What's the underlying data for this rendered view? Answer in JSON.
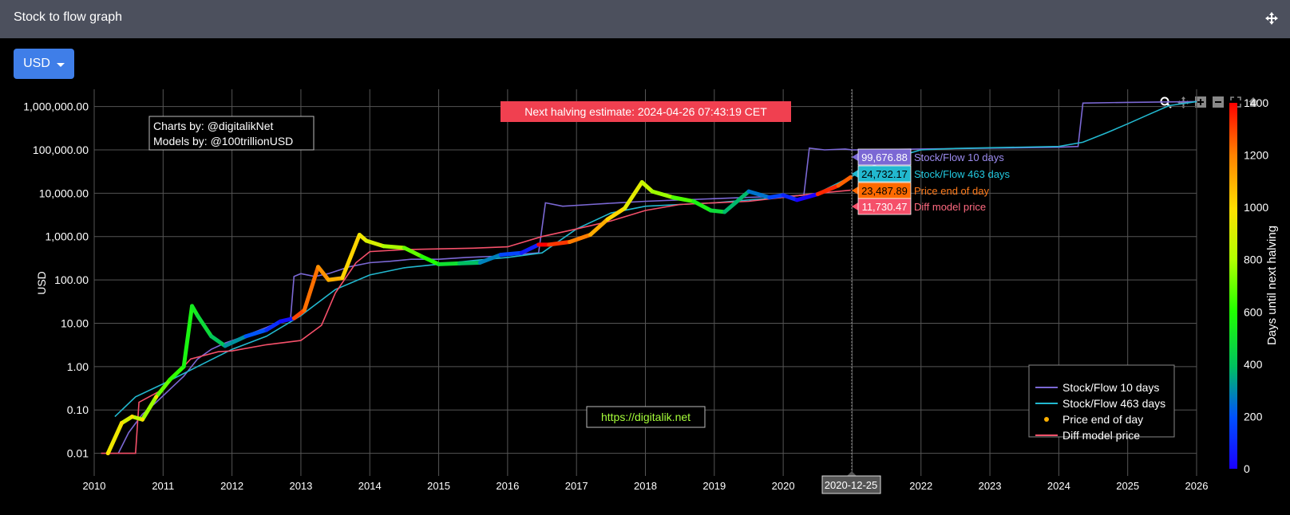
{
  "window": {
    "title": "Stock to flow graph"
  },
  "toolbar": {
    "currency": "USD"
  },
  "chart_data": {
    "type": "line",
    "halving_banner": "Next halving estimate: 2024-04-26 07:43:19 CET",
    "credits": [
      "Charts by: @digitalikNet",
      "Models by: @100trillionUSD"
    ],
    "watermark": "https://digitalik.net",
    "hover_date": "2020-12-25",
    "ylabel": "USD",
    "y_scale": "log",
    "ylim": [
      0.003,
      2500000
    ],
    "xlim": [
      2010.0,
      2026.0
    ],
    "y_ticks": [
      {
        "v": 1000000,
        "label": "1,000,000.00"
      },
      {
        "v": 100000,
        "label": "100,000.00"
      },
      {
        "v": 10000,
        "label": "10,000.00"
      },
      {
        "v": 1000,
        "label": "1,000.00"
      },
      {
        "v": 100,
        "label": "100.00"
      },
      {
        "v": 10,
        "label": "10.00"
      },
      {
        "v": 1,
        "label": "1.00"
      },
      {
        "v": 0.1,
        "label": "0.10"
      },
      {
        "v": 0.01,
        "label": "0.01"
      }
    ],
    "x_ticks": [
      {
        "v": 2010,
        "label": "2010"
      },
      {
        "v": 2011,
        "label": "2011"
      },
      {
        "v": 2012,
        "label": "2012"
      },
      {
        "v": 2013,
        "label": "2013"
      },
      {
        "v": 2014,
        "label": "2014"
      },
      {
        "v": 2015,
        "label": "2015"
      },
      {
        "v": 2016,
        "label": "2016"
      },
      {
        "v": 2017,
        "label": "2017"
      },
      {
        "v": 2018,
        "label": "2018"
      },
      {
        "v": 2019,
        "label": "2019"
      },
      {
        "v": 2020,
        "label": "2020"
      },
      {
        "v": 2022,
        "label": "2022"
      },
      {
        "v": 2023,
        "label": "2023"
      },
      {
        "v": 2024,
        "label": "2024"
      },
      {
        "v": 2025,
        "label": "2025"
      },
      {
        "v": 2026,
        "label": "2026"
      }
    ],
    "colorbar": {
      "title": "Days until next halving",
      "min": 0,
      "max": 1400,
      "ticks": [
        0,
        200,
        400,
        600,
        800,
        1000,
        1200,
        1400
      ]
    },
    "series": [
      {
        "name": "Stock/Flow 10 days",
        "color": "#7b68d4",
        "hover_value": "99,676.88",
        "x": [
          2010.35,
          2010.5,
          2010.7,
          2010.9,
          2011.1,
          2011.3,
          2011.5,
          2011.7,
          2011.9,
          2012.1,
          2012.3,
          2012.5,
          2012.7,
          2012.85,
          2012.9,
          2013.0,
          2013.2,
          2013.4,
          2013.7,
          2014.0,
          2014.3,
          2014.6,
          2015.0,
          2015.4,
          2015.8,
          2016.1,
          2016.45,
          2016.55,
          2016.8,
          2017.2,
          2017.6,
          2018.0,
          2018.5,
          2019.0,
          2019.5,
          2020.0,
          2020.3,
          2020.38,
          2020.6,
          2020.9,
          2021.0,
          2022.0,
          2023.0,
          2024.0,
          2024.28,
          2024.35,
          2025.0,
          2026.0
        ],
        "y": [
          0.01,
          0.03,
          0.08,
          0.15,
          0.3,
          0.6,
          1.5,
          2.5,
          3.5,
          4.5,
          6,
          8,
          11,
          13,
          120,
          140,
          120,
          140,
          200,
          250,
          270,
          300,
          300,
          330,
          350,
          380,
          420,
          6000,
          5000,
          5500,
          6000,
          6500,
          7000,
          7500,
          8000,
          8500,
          9000,
          110000,
          100000,
          105000,
          99677,
          105000,
          110000,
          115000,
          120000,
          1200000,
          1250000,
          1300000
        ]
      },
      {
        "name": "Stock/Flow 463 days",
        "color": "#22b8cf",
        "hover_value": "24,732.17",
        "x": [
          2010.3,
          2010.6,
          2011.0,
          2011.5,
          2012.0,
          2012.5,
          2013.0,
          2013.5,
          2014.0,
          2014.5,
          2015.0,
          2015.5,
          2016.0,
          2016.5,
          2017.0,
          2017.5,
          2018.0,
          2018.5,
          2019.0,
          2019.5,
          2020.0,
          2020.5,
          2021.0,
          2021.5,
          2022.0,
          2022.5,
          2023.0,
          2023.5,
          2024.0,
          2024.35,
          2024.7,
          2025.0,
          2025.3,
          2025.6,
          2026.0
        ],
        "y": [
          0.07,
          0.2,
          0.4,
          1.0,
          2.5,
          5,
          15,
          60,
          130,
          190,
          230,
          280,
          330,
          420,
          1500,
          3500,
          5000,
          5500,
          6000,
          7000,
          8000,
          10000,
          24732,
          60000,
          100000,
          108000,
          112000,
          116000,
          120000,
          150000,
          250000,
          400000,
          650000,
          1050000,
          1300000
        ]
      },
      {
        "name": "Price end of day",
        "color": "#ff6a00",
        "hover_value": "23,487.89",
        "x": [
          2010.2,
          2010.4,
          2010.55,
          2010.7,
          2010.9,
          2011.1,
          2011.3,
          2011.42,
          2011.5,
          2011.7,
          2011.9,
          2012.2,
          2012.5,
          2012.7,
          2012.9,
          2013.05,
          2013.25,
          2013.4,
          2013.6,
          2013.85,
          2013.95,
          2014.2,
          2014.5,
          2014.75,
          2015.0,
          2015.3,
          2015.6,
          2015.9,
          2016.2,
          2016.45,
          2016.6,
          2016.9,
          2017.2,
          2017.45,
          2017.7,
          2017.95,
          2018.1,
          2018.4,
          2018.7,
          2018.95,
          2019.15,
          2019.5,
          2019.8,
          2020.0,
          2020.2,
          2020.5,
          2020.8,
          2020.98
        ],
        "y": [
          0.01,
          0.05,
          0.07,
          0.06,
          0.2,
          0.5,
          1.0,
          25,
          15,
          5,
          3,
          5,
          7,
          11,
          13,
          20,
          200,
          100,
          110,
          1100,
          800,
          600,
          550,
          350,
          230,
          240,
          250,
          380,
          420,
          650,
          650,
          750,
          1100,
          2500,
          4500,
          18000,
          11000,
          8000,
          6500,
          4000,
          3700,
          11000,
          8000,
          9000,
          7000,
          9500,
          15000,
          23488
        ]
      },
      {
        "name": "Diff model price",
        "color": "#f5506a",
        "hover_value": "11,730.47",
        "x": [
          2010.1,
          2010.6,
          2010.65,
          2011.0,
          2011.4,
          2011.8,
          2012.0,
          2012.5,
          2013.0,
          2013.3,
          2013.5,
          2013.8,
          2014.0,
          2014.5,
          2015.0,
          2015.5,
          2016.0,
          2016.5,
          2017.0,
          2017.5,
          2018.0,
          2018.5,
          2019.0,
          2019.5,
          2020.0,
          2020.5,
          2020.98
        ],
        "y": [
          0.01,
          0.01,
          0.15,
          0.3,
          1.5,
          2.2,
          2.3,
          3.2,
          4.0,
          9,
          50,
          250,
          450,
          500,
          520,
          540,
          580,
          1000,
          1500,
          2300,
          4000,
          5500,
          6000,
          6500,
          8000,
          10000,
          11730
        ]
      }
    ]
  }
}
